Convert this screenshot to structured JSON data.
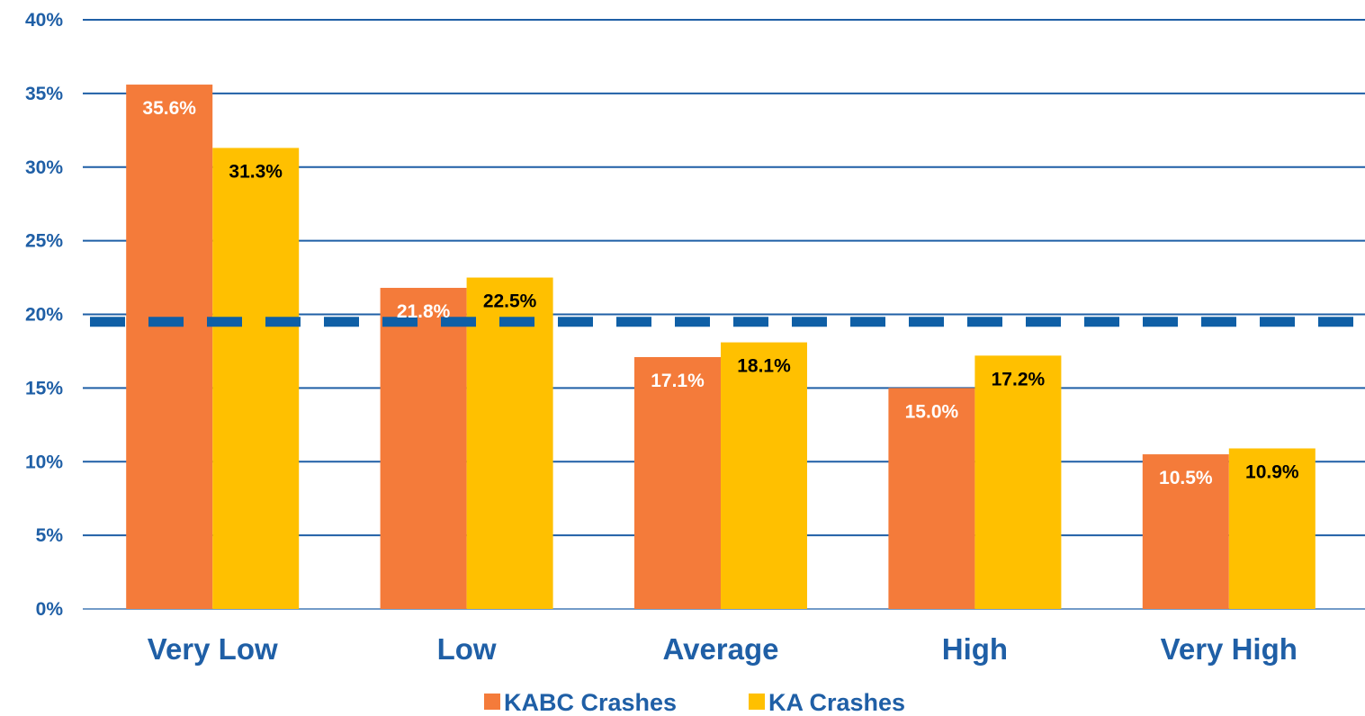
{
  "colors": {
    "axis_text": "#1F5FA6",
    "gridline": "#1F5FA6",
    "reference_line": "#0F5FA6",
    "series_kabc": "#F47B3A",
    "series_ka": "#FFC000",
    "label_on_orange": "#FFFFFF",
    "label_on_yellow": "#000000"
  },
  "chart_data": {
    "type": "bar",
    "categories": [
      "Very Low",
      "Low",
      "Average",
      "High",
      "Very High"
    ],
    "series": [
      {
        "name": "KABC Crashes",
        "values": [
          35.6,
          21.8,
          17.1,
          15.0,
          10.5
        ],
        "labels": [
          "35.6%",
          "21.8%",
          "17.1%",
          "15.0%",
          "10.5%"
        ]
      },
      {
        "name": "KA Crashes",
        "values": [
          31.3,
          22.5,
          18.1,
          17.2,
          10.9
        ],
        "labels": [
          "31.3%",
          "22.5%",
          "18.1%",
          "17.2%",
          "10.9%"
        ]
      }
    ],
    "ylim": [
      0,
      40
    ],
    "yticks": [
      0,
      5,
      10,
      15,
      20,
      25,
      30,
      35,
      40
    ],
    "ytick_labels": [
      "0%",
      "5%",
      "10%",
      "15%",
      "20%",
      "25%",
      "30%",
      "35%",
      "40%"
    ],
    "reference_line": {
      "value": 19.5,
      "style": "dashed"
    },
    "grid": true,
    "legend_position": "bottom"
  }
}
